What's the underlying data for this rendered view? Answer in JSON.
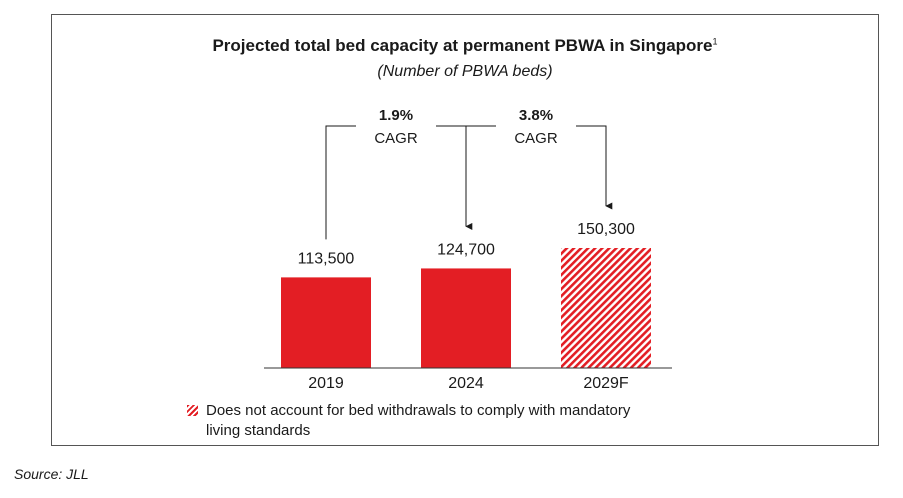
{
  "chart_data": {
    "type": "bar",
    "title": "Projected total bed capacity at permanent PBWA in Singapore",
    "title_footnote": "1",
    "subtitle": "(Number of PBWA beds)",
    "categories": [
      "2019",
      "2024",
      "2029F"
    ],
    "values": [
      113500,
      124700,
      150300
    ],
    "value_labels": [
      "113,500",
      "124,700",
      "150,300"
    ],
    "hatched": [
      false,
      false,
      true
    ],
    "ylim": [
      0,
      150300
    ],
    "grid": false,
    "colors": {
      "bar": "#e31e24",
      "text": "#1a1a1a"
    },
    "annotations": [
      {
        "from": 0,
        "to": 1,
        "value": "1.9%",
        "label": "CAGR"
      },
      {
        "from": 1,
        "to": 2,
        "value": "3.8%",
        "label": "CAGR"
      }
    ],
    "legend": {
      "placement": "bottom",
      "entries": [
        "Does not account for bed withdrawals to comply with mandatory",
        "living standards"
      ]
    }
  },
  "source": "Source: JLL"
}
